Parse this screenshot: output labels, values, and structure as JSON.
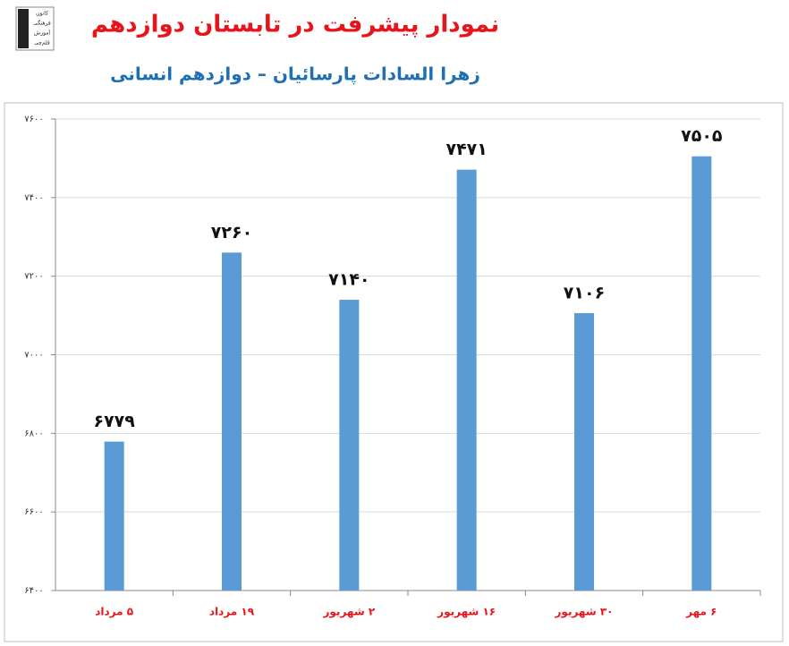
{
  "chart_data": {
    "type": "bar",
    "title": "نمودار پیشرفت در تابستان دوازدهم",
    "subtitle": "زهرا السادات پارسائیان – دوازدهم انسانی",
    "logo_text": [
      "کانون",
      "فرهنگی",
      "آموزش",
      "قلم‌چی"
    ],
    "categories": [
      "۵ مرداد",
      "۱۹ مرداد",
      "۲ شهریور",
      "۱۶ شهریور",
      "۳۰ شهریور",
      "۶ مهر"
    ],
    "values": [
      6779,
      7260,
      7140,
      7471,
      7106,
      7505
    ],
    "value_labels": [
      "۶۷۷۹",
      "۷۲۶۰",
      "۷۱۴۰",
      "۷۴۷۱",
      "۷۱۰۶",
      "۷۵۰۵"
    ],
    "color": "#5b9bd5",
    "ylim": [
      6400,
      7600
    ],
    "yticks": [
      {
        "value": 6400,
        "label": "۶۴۰۰"
      },
      {
        "value": 6600,
        "label": "۶۶۰۰"
      },
      {
        "value": 6800,
        "label": "۶۸۰۰"
      },
      {
        "value": 7000,
        "label": "۷۰۰۰"
      },
      {
        "value": 7200,
        "label": "۷۲۰۰"
      },
      {
        "value": 7400,
        "label": "۷۴۰۰"
      },
      {
        "value": 7600,
        "label": "۷۶۰۰"
      }
    ],
    "grid": true
  }
}
